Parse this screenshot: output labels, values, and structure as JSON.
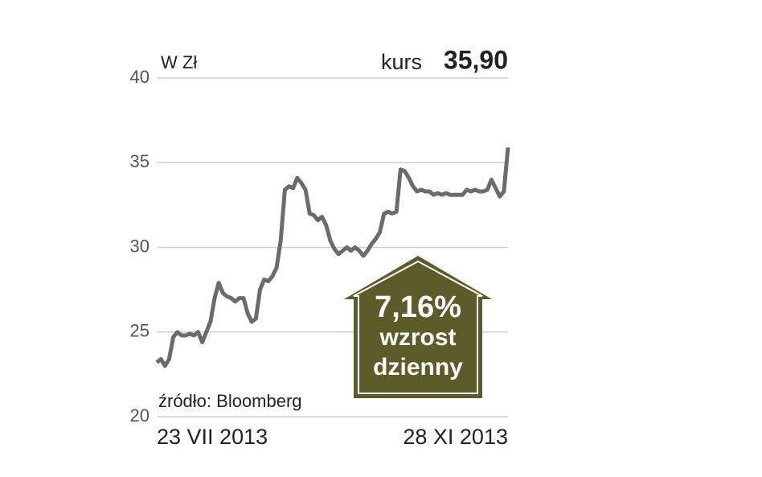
{
  "chart_data": {
    "type": "line",
    "unit_label": "W Zł",
    "price_label": "kurs",
    "price_value": "35,90",
    "change_value": "7,16%",
    "change_line1": "wzrost",
    "change_line2": "dzienny",
    "source": "źródło: Bloomberg",
    "categories": [
      "23 VII 2013",
      null,
      null,
      null,
      null,
      null,
      null,
      null,
      null,
      null,
      null,
      null,
      null,
      null,
      null,
      null,
      null,
      null,
      null,
      null,
      null,
      null,
      null,
      null,
      null,
      null,
      null,
      null,
      null,
      null,
      null,
      null,
      null,
      null,
      null,
      null,
      null,
      null,
      null,
      null,
      null,
      null,
      null,
      null,
      null,
      null,
      null,
      null,
      null,
      null,
      null,
      null,
      null,
      null,
      null,
      null,
      null,
      null,
      null,
      null,
      null,
      null,
      null,
      null,
      null,
      null,
      null,
      null,
      null,
      null,
      null,
      null,
      null,
      null,
      null,
      null,
      null,
      null,
      null,
      null,
      null,
      null,
      null,
      null,
      null,
      "28 XI 2013"
    ],
    "values": [
      23.2,
      23.4,
      23.0,
      23.4,
      24.7,
      25.0,
      24.8,
      24.8,
      24.9,
      24.8,
      25.0,
      24.4,
      25.0,
      25.6,
      27.0,
      27.9,
      27.3,
      27.1,
      27.0,
      26.8,
      27.0,
      27.0,
      26.1,
      25.6,
      25.8,
      27.5,
      28.1,
      28.0,
      28.3,
      28.8,
      30.4,
      33.4,
      33.6,
      33.5,
      34.1,
      33.8,
      33.4,
      32.0,
      31.9,
      31.6,
      31.8,
      31.3,
      30.4,
      29.9,
      29.6,
      29.8,
      30.0,
      29.8,
      30.0,
      29.8,
      29.5,
      29.8,
      30.2,
      30.5,
      30.9,
      32.0,
      32.1,
      32.0,
      32.1,
      34.6,
      34.5,
      34.1,
      33.6,
      33.3,
      33.4,
      33.3,
      33.3,
      33.1,
      33.2,
      33.1,
      33.2,
      33.1,
      33.1,
      33.1,
      33.1,
      33.4,
      33.3,
      33.4,
      33.3,
      33.3,
      33.4,
      34.0,
      33.5,
      33.0,
      33.3,
      35.9
    ],
    "color": "#6b6b6b",
    "ylim": [
      20,
      40
    ],
    "yticks": [
      20,
      25,
      30,
      35,
      40
    ],
    "grid": true
  }
}
